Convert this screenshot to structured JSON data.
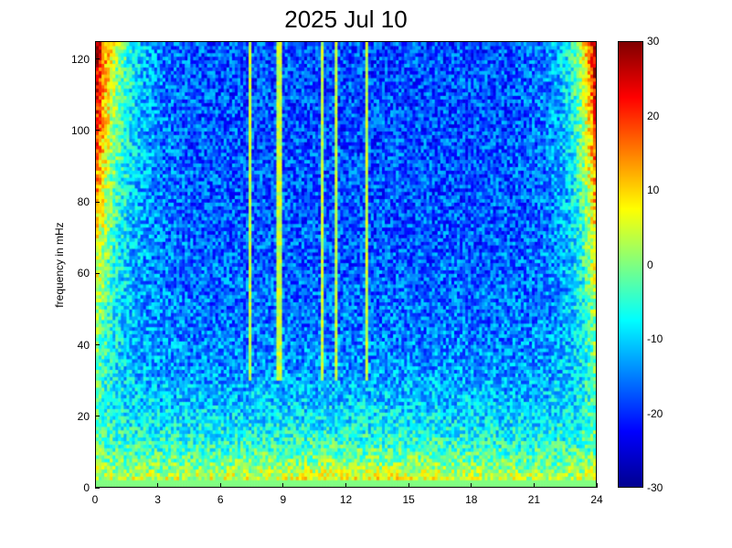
{
  "chart_data": {
    "type": "heatmap",
    "title": "2025 Jul 10",
    "xlabel": "",
    "ylabel": "frequency in mHz",
    "xlim": [
      0,
      24
    ],
    "ylim": [
      0,
      125
    ],
    "x_ticks": [
      "0",
      "3",
      "6",
      "9",
      "12",
      "15",
      "18",
      "21",
      "24"
    ],
    "y_ticks": [
      "0",
      "20",
      "40",
      "60",
      "80",
      "100",
      "120"
    ],
    "colorbar": {
      "range": [
        -30,
        30
      ],
      "ticks": [
        "-30",
        "-20",
        "-10",
        "0",
        "10",
        "20",
        "30"
      ],
      "colormap": "jet"
    },
    "bright_vertical_lines_hours": [
      7.4,
      8.8,
      10.9,
      11.5,
      13.0
    ],
    "low_freq_band_mHz": 1.5,
    "description_levels": {
      "below_10_mHz": 18,
      "around_20_mHz": 8,
      "around_60_mHz": -8,
      "around_100_mHz": -18,
      "edges_high_freq": 28
    }
  },
  "colors": {
    "jet_low": "#00008f",
    "jet_mid": "#00ffff",
    "jet_high": "#800000"
  }
}
